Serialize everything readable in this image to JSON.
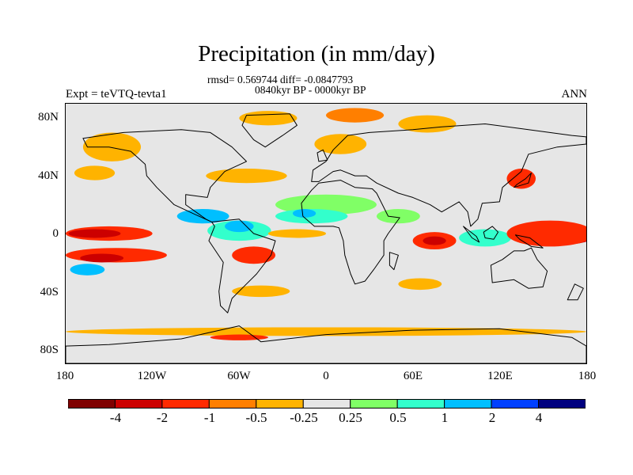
{
  "title": "Precipitation (in mm/day)",
  "stats_line": "rmsd= 0.569744 diff= -0.0847793",
  "period_line": "0840kyr BP - 0000kyr BP",
  "experiment_label": "Expt = teVTQ-tevta1",
  "season_label": "ANN",
  "map": {
    "projection": "cylindrical equidistant",
    "lon_range": [
      -180,
      180
    ],
    "lat_range": [
      -90,
      90
    ],
    "background_color": "#e6e6e6",
    "y_ticks": [
      {
        "lat": 80,
        "label": "80N"
      },
      {
        "lat": 40,
        "label": "40N"
      },
      {
        "lat": 0,
        "label": "0"
      },
      {
        "lat": -40,
        "label": "40S"
      },
      {
        "lat": -80,
        "label": "80S"
      }
    ],
    "x_ticks": [
      {
        "lon": -180,
        "label": "180"
      },
      {
        "lon": -120,
        "label": "120W"
      },
      {
        "lon": -60,
        "label": "60W"
      },
      {
        "lon": 0,
        "label": "0"
      },
      {
        "lon": 60,
        "label": "60E"
      },
      {
        "lon": 120,
        "label": "120E"
      },
      {
        "lon": 180,
        "label": "180"
      }
    ]
  },
  "colorbar": {
    "colors": [
      "#7f0000",
      "#cc0000",
      "#ff2a00",
      "#ff7f00",
      "#ffb300",
      "#e6e6e6",
      "#80ff66",
      "#33ffcc",
      "#00bfff",
      "#0040ff",
      "#00007f"
    ],
    "labels": [
      "-4",
      "-2",
      "-1",
      "-0.5",
      "-0.25",
      "0.25",
      "0.5",
      "1",
      "2",
      "4"
    ]
  },
  "anomaly_regions": [
    {
      "name": "alaska",
      "lon": -150,
      "lat": 58,
      "rx": 12,
      "ry": 6,
      "color": "#cc0000"
    },
    {
      "name": "alaska-rim",
      "lon": -148,
      "lat": 60,
      "rx": 20,
      "ry": 10,
      "color": "#ffb300"
    },
    {
      "name": "n-pacific",
      "lon": -160,
      "lat": 42,
      "rx": 14,
      "ry": 5,
      "color": "#ffb300"
    },
    {
      "name": "n-atlantic",
      "lon": -55,
      "lat": 40,
      "rx": 28,
      "ry": 5,
      "color": "#ffb300"
    },
    {
      "name": "greenland",
      "lon": -40,
      "lat": 80,
      "rx": 20,
      "ry": 5,
      "color": "#ffb300"
    },
    {
      "name": "arctic-europe",
      "lon": 20,
      "lat": 82,
      "rx": 20,
      "ry": 5,
      "color": "#ff7f00"
    },
    {
      "name": "siberia",
      "lon": 70,
      "lat": 76,
      "rx": 20,
      "ry": 6,
      "color": "#ffb300"
    },
    {
      "name": "europe",
      "lon": 10,
      "lat": 62,
      "rx": 18,
      "ry": 7,
      "color": "#ffb300"
    },
    {
      "name": "c-pacific-itcz",
      "lon": -150,
      "lat": 0,
      "rx": 30,
      "ry": 5,
      "color": "#ff2a00"
    },
    {
      "name": "c-pacific-itcz-core",
      "lon": -160,
      "lat": 0,
      "rx": 18,
      "ry": 3,
      "color": "#cc0000"
    },
    {
      "name": "s-pacific",
      "lon": -145,
      "lat": -15,
      "rx": 35,
      "ry": 5,
      "color": "#ff2a00"
    },
    {
      "name": "s-pacific-core",
      "lon": -155,
      "lat": -17,
      "rx": 15,
      "ry": 3,
      "color": "#cc0000"
    },
    {
      "name": "s-pacific-blue",
      "lon": -165,
      "lat": -25,
      "rx": 12,
      "ry": 4,
      "color": "#00bfff"
    },
    {
      "name": "caribbean",
      "lon": -85,
      "lat": 12,
      "rx": 18,
      "ry": 5,
      "color": "#00bfff"
    },
    {
      "name": "amazon",
      "lon": -60,
      "lat": 2,
      "rx": 22,
      "ry": 7,
      "color": "#33ffcc"
    },
    {
      "name": "amazon-core",
      "lon": -60,
      "lat": 5,
      "rx": 10,
      "ry": 4,
      "color": "#00bfff"
    },
    {
      "name": "brazil",
      "lon": -50,
      "lat": -15,
      "rx": 15,
      "ry": 6,
      "color": "#ff2a00"
    },
    {
      "name": "sahara",
      "lon": 0,
      "lat": 20,
      "rx": 35,
      "ry": 7,
      "color": "#80ff66"
    },
    {
      "name": "sahel",
      "lon": -10,
      "lat": 12,
      "rx": 25,
      "ry": 5,
      "color": "#33ffcc"
    },
    {
      "name": "sahel-core",
      "lon": -15,
      "lat": 14,
      "rx": 8,
      "ry": 3,
      "color": "#00bfff"
    },
    {
      "name": "trop-atlantic",
      "lon": -20,
      "lat": 0,
      "rx": 20,
      "ry": 3,
      "color": "#ffb300"
    },
    {
      "name": "indian-ocean",
      "lon": 75,
      "lat": -5,
      "rx": 15,
      "ry": 6,
      "color": "#ff2a00"
    },
    {
      "name": "indian-ocean-core",
      "lon": 75,
      "lat": -5,
      "rx": 8,
      "ry": 3,
      "color": "#cc0000"
    },
    {
      "name": "arabia",
      "lon": 50,
      "lat": 12,
      "rx": 15,
      "ry": 5,
      "color": "#80ff66"
    },
    {
      "name": "maritime",
      "lon": 110,
      "lat": -3,
      "rx": 18,
      "ry": 6,
      "color": "#33ffcc"
    },
    {
      "name": "w-pacific",
      "lon": 160,
      "lat": -2,
      "rx": 25,
      "ry": 6,
      "color": "#cc0000"
    },
    {
      "name": "w-pacific-rim",
      "lon": 155,
      "lat": 0,
      "rx": 30,
      "ry": 9,
      "color": "#ff2a00"
    },
    {
      "name": "japan",
      "lon": 135,
      "lat": 38,
      "rx": 10,
      "ry": 7,
      "color": "#ff2a00"
    },
    {
      "name": "s-atlantic",
      "lon": -45,
      "lat": -40,
      "rx": 20,
      "ry": 4,
      "color": "#ffb300"
    },
    {
      "name": "s-indian",
      "lon": 65,
      "lat": -35,
      "rx": 15,
      "ry": 4,
      "color": "#ffb300"
    },
    {
      "name": "antarctic-ring",
      "lon": 0,
      "lat": -68,
      "rx": 180,
      "ry": 3,
      "color": "#ffb300"
    },
    {
      "name": "antarctic-red",
      "lon": -60,
      "lat": -72,
      "rx": 20,
      "ry": 2,
      "color": "#ff2a00"
    }
  ],
  "continents": [
    {
      "name": "north-america",
      "pts": [
        [
          -168,
          66
        ],
        [
          -140,
          70
        ],
        [
          -100,
          72
        ],
        [
          -80,
          70
        ],
        [
          -65,
          60
        ],
        [
          -55,
          50
        ],
        [
          -70,
          43
        ],
        [
          -80,
          32
        ],
        [
          -82,
          25
        ],
        [
          -97,
          27
        ],
        [
          -97,
          20
        ],
        [
          -90,
          15
        ],
        [
          -83,
          10
        ],
        [
          -79,
          8
        ],
        [
          -90,
          13
        ],
        [
          -105,
          20
        ],
        [
          -117,
          32
        ],
        [
          -124,
          40
        ],
        [
          -125,
          48
        ],
        [
          -135,
          57
        ],
        [
          -150,
          60
        ],
        [
          -165,
          60
        ]
      ]
    },
    {
      "name": "south-america",
      "pts": [
        [
          -79,
          8
        ],
        [
          -60,
          10
        ],
        [
          -50,
          0
        ],
        [
          -35,
          -5
        ],
        [
          -38,
          -15
        ],
        [
          -48,
          -28
        ],
        [
          -58,
          -38
        ],
        [
          -65,
          -45
        ],
        [
          -68,
          -55
        ],
        [
          -73,
          -50
        ],
        [
          -74,
          -40
        ],
        [
          -71,
          -20
        ],
        [
          -81,
          -5
        ],
        [
          -77,
          5
        ]
      ]
    },
    {
      "name": "greenland",
      "pts": [
        [
          -55,
          82
        ],
        [
          -25,
          83
        ],
        [
          -20,
          75
        ],
        [
          -30,
          68
        ],
        [
          -42,
          60
        ],
        [
          -50,
          65
        ],
        [
          -58,
          75
        ]
      ]
    },
    {
      "name": "eurasia",
      "pts": [
        [
          -10,
          36
        ],
        [
          -9,
          44
        ],
        [
          0,
          50
        ],
        [
          5,
          58
        ],
        [
          15,
          68
        ],
        [
          30,
          70
        ],
        [
          60,
          72
        ],
        [
          80,
          74
        ],
        [
          110,
          76
        ],
        [
          140,
          72
        ],
        [
          170,
          68
        ],
        [
          180,
          67
        ],
        [
          180,
          62
        ],
        [
          160,
          60
        ],
        [
          140,
          55
        ],
        [
          135,
          43
        ],
        [
          122,
          32
        ],
        [
          120,
          22
        ],
        [
          108,
          21
        ],
        [
          105,
          10
        ],
        [
          100,
          5
        ],
        [
          98,
          15
        ],
        [
          92,
          22
        ],
        [
          80,
          15
        ],
        [
          72,
          20
        ],
        [
          60,
          25
        ],
        [
          50,
          28
        ],
        [
          35,
          35
        ],
        [
          28,
          40
        ],
        [
          20,
          40
        ],
        [
          10,
          44
        ],
        [
          5,
          43
        ],
        [
          -5,
          36
        ]
      ]
    },
    {
      "name": "africa",
      "pts": [
        [
          -17,
          21
        ],
        [
          -16,
          12
        ],
        [
          -8,
          5
        ],
        [
          5,
          5
        ],
        [
          9,
          4
        ],
        [
          12,
          -5
        ],
        [
          13,
          -15
        ],
        [
          17,
          -28
        ],
        [
          20,
          -35
        ],
        [
          27,
          -33
        ],
        [
          33,
          -25
        ],
        [
          40,
          -15
        ],
        [
          40,
          -5
        ],
        [
          43,
          0
        ],
        [
          51,
          11
        ],
        [
          43,
          12
        ],
        [
          35,
          28
        ],
        [
          32,
          31
        ],
        [
          20,
          32
        ],
        [
          10,
          37
        ],
        [
          -5,
          35
        ],
        [
          -10,
          30
        ]
      ]
    },
    {
      "name": "australia",
      "pts": [
        [
          114,
          -22
        ],
        [
          122,
          -18
        ],
        [
          130,
          -12
        ],
        [
          137,
          -12
        ],
        [
          142,
          -10
        ],
        [
          146,
          -18
        ],
        [
          153,
          -26
        ],
        [
          150,
          -37
        ],
        [
          140,
          -38
        ],
        [
          130,
          -32
        ],
        [
          115,
          -34
        ]
      ]
    },
    {
      "name": "antarctica",
      "pts": [
        [
          -180,
          -78
        ],
        [
          -150,
          -77
        ],
        [
          -100,
          -73
        ],
        [
          -60,
          -64
        ],
        [
          -45,
          -75
        ],
        [
          0,
          -70
        ],
        [
          60,
          -67
        ],
        [
          120,
          -66
        ],
        [
          170,
          -72
        ],
        [
          180,
          -78
        ],
        [
          180,
          -90
        ],
        [
          -180,
          -90
        ]
      ]
    },
    {
      "name": "borneo",
      "pts": [
        [
          109,
          1
        ],
        [
          115,
          5
        ],
        [
          119,
          1
        ],
        [
          116,
          -4
        ],
        [
          110,
          -3
        ]
      ]
    },
    {
      "name": "sumatra",
      "pts": [
        [
          95,
          5
        ],
        [
          104,
          -2
        ],
        [
          106,
          -6
        ],
        [
          101,
          -3
        ]
      ]
    },
    {
      "name": "new-guinea",
      "pts": [
        [
          131,
          -1
        ],
        [
          141,
          -3
        ],
        [
          150,
          -10
        ],
        [
          142,
          -9
        ],
        [
          134,
          -4
        ]
      ]
    },
    {
      "name": "madagascar",
      "pts": [
        [
          44,
          -13
        ],
        [
          50,
          -15
        ],
        [
          47,
          -25
        ],
        [
          44,
          -22
        ]
      ]
    },
    {
      "name": "britain",
      "pts": [
        [
          -5,
          50
        ],
        [
          1,
          51
        ],
        [
          -2,
          58
        ],
        [
          -6,
          56
        ]
      ]
    },
    {
      "name": "japan-islands",
      "pts": [
        [
          130,
          32
        ],
        [
          140,
          35
        ],
        [
          142,
          42
        ],
        [
          138,
          38
        ],
        [
          132,
          34
        ]
      ]
    },
    {
      "name": "new-zealand",
      "pts": [
        [
          172,
          -35
        ],
        [
          178,
          -38
        ],
        [
          174,
          -46
        ],
        [
          167,
          -46
        ]
      ]
    }
  ]
}
